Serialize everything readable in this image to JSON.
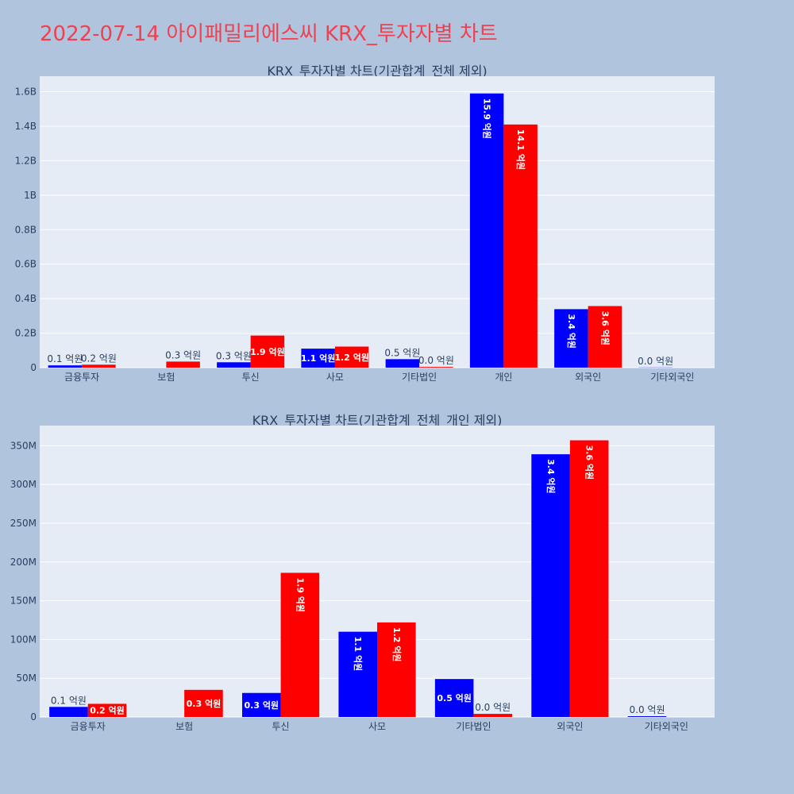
{
  "page": {
    "title": "2022-07-14 아이패밀리에스씨 KRX_투자자별 차트"
  },
  "colors": {
    "background": "#b0c4de",
    "plot_bg": "#e5ecf6",
    "grid": "#ffffff",
    "title": "#ef4150",
    "text": "#2a3f5f",
    "series_a": "#0000ff",
    "series_b": "#ff0000"
  },
  "chart_data": [
    {
      "type": "bar",
      "title": "KRX_투자자별 차트(기관합계_전체 제외)",
      "categories": [
        "금융투자",
        "보험",
        "투신",
        "사모",
        "기타법인",
        "개인",
        "외국인",
        "기타외국인"
      ],
      "ylim": [
        0,
        1690000000
      ],
      "yticks": [
        0,
        200000000,
        400000000,
        600000000,
        800000000,
        1000000000,
        1200000000,
        1400000000,
        1600000000
      ],
      "ytick_labels": [
        "0",
        "0.2B",
        "0.4B",
        "0.6B",
        "0.8B",
        "1B",
        "1.2B",
        "1.4B",
        "1.6B"
      ],
      "grid": true,
      "series": [
        {
          "color": "#0000ff",
          "values": [
            13000000,
            0,
            31000000,
            110000000,
            49000000,
            1590000000,
            339000000,
            1000000
          ],
          "labels": [
            "0.1 억원",
            "",
            "0.3 억원",
            "1.1 억원",
            "0.5 억원",
            "15.9 억원",
            "3.4 억원",
            "0.0 억원"
          ]
        },
        {
          "color": "#ff0000",
          "values": [
            17000000,
            35000000,
            186000000,
            122000000,
            4000000,
            1410000000,
            357000000,
            0
          ],
          "labels": [
            "0.2 억원",
            "0.3 억원",
            "1.9 억원",
            "1.2 억원",
            "0.0 억원",
            "14.1 억원",
            "3.6 억원",
            ""
          ]
        }
      ]
    },
    {
      "type": "bar",
      "title": "KRX_투자자별 차트(기관합계_전체_개인 제외)",
      "categories": [
        "금융투자",
        "보험",
        "투신",
        "사모",
        "기타법인",
        "외국인",
        "기타외국인"
      ],
      "ylim": [
        0,
        376000000
      ],
      "yticks": [
        0,
        50000000,
        100000000,
        150000000,
        200000000,
        250000000,
        300000000,
        350000000
      ],
      "ytick_labels": [
        "0",
        "50M",
        "100M",
        "150M",
        "200M",
        "250M",
        "300M",
        "350M"
      ],
      "grid": true,
      "series": [
        {
          "color": "#0000ff",
          "values": [
            13000000,
            0,
            31000000,
            110000000,
            49000000,
            339000000,
            1000000
          ],
          "labels": [
            "0.1 억원",
            "",
            "0.3 억원",
            "1.1 억원",
            "0.5 억원",
            "3.4 억원",
            "0.0 억원"
          ]
        },
        {
          "color": "#ff0000",
          "values": [
            17000000,
            35000000,
            186000000,
            122000000,
            4000000,
            357000000,
            0
          ],
          "labels": [
            "0.2 억원",
            "0.3 억원",
            "1.9 억원",
            "1.2 억원",
            "0.0 억원",
            "3.6 억원",
            ""
          ]
        }
      ]
    }
  ]
}
